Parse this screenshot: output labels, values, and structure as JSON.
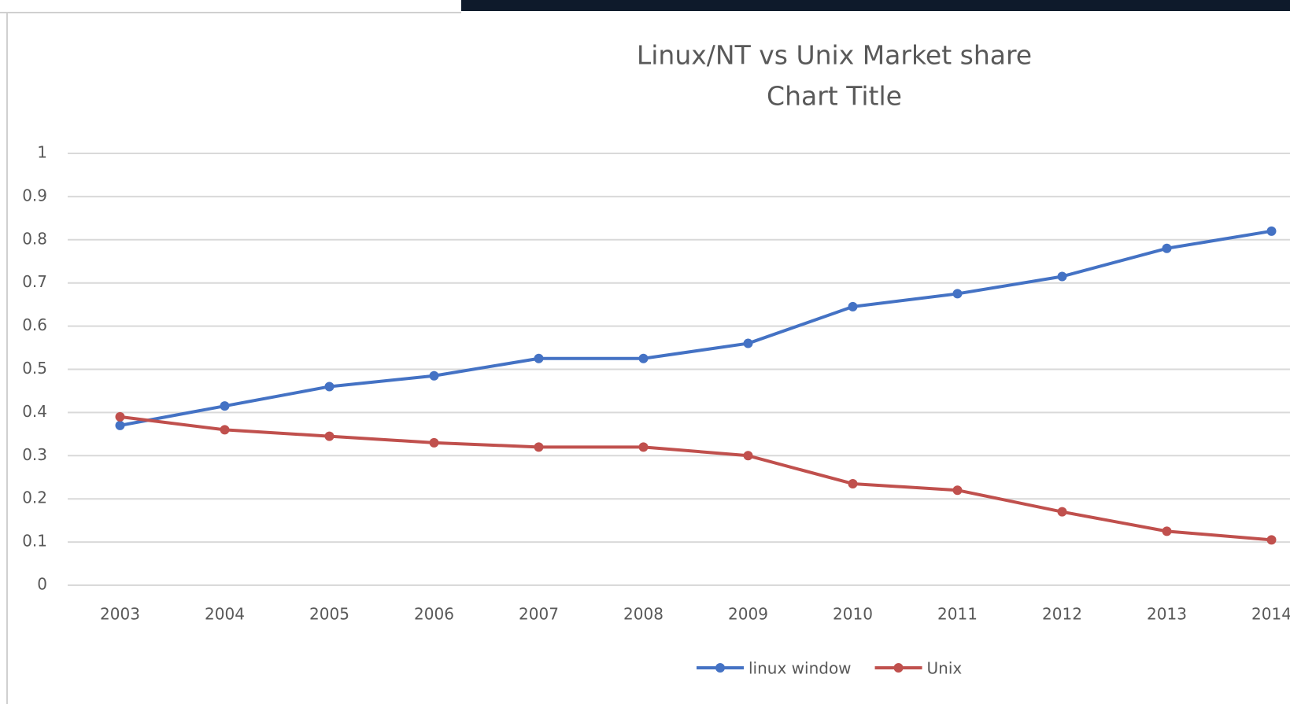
{
  "chart_data": {
    "type": "line",
    "title": "Linux/NT vs Unix Market share",
    "subtitle": "Chart Title",
    "categories": [
      "2003",
      "2004",
      "2005",
      "2006",
      "2007",
      "2008",
      "2009",
      "2010",
      "2011",
      "2012",
      "2013",
      "2014"
    ],
    "series": [
      {
        "name": "linux window",
        "color": "#4472c4",
        "values": [
          0.37,
          0.415,
          0.46,
          0.485,
          0.525,
          0.525,
          0.56,
          0.645,
          0.675,
          0.715,
          0.78,
          0.82
        ]
      },
      {
        "name": "Unix",
        "color": "#c0504d",
        "values": [
          0.39,
          0.36,
          0.345,
          0.33,
          0.32,
          0.32,
          0.3,
          0.235,
          0.22,
          0.17,
          0.125,
          0.105
        ]
      }
    ],
    "ylim": [
      0,
      1
    ],
    "yticks": [
      0,
      0.1,
      0.2,
      0.3,
      0.4,
      0.5,
      0.6,
      0.7,
      0.8,
      0.9,
      1
    ],
    "grid": true,
    "legend": "bottom"
  }
}
